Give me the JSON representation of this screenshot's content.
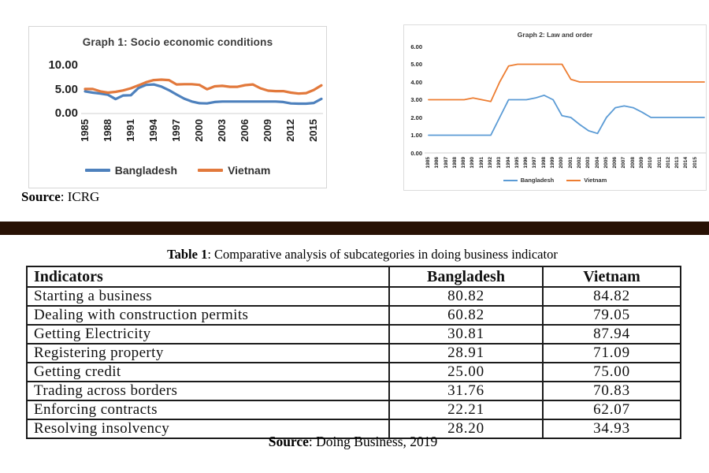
{
  "chart_data": [
    {
      "type": "line",
      "title": "Graph 1: Socio economic conditions",
      "x": [
        1985,
        1986,
        1987,
        1988,
        1989,
        1990,
        1991,
        1992,
        1993,
        1994,
        1995,
        1996,
        1997,
        1998,
        1999,
        2000,
        2001,
        2002,
        2003,
        2004,
        2005,
        2006,
        2007,
        2008,
        2009,
        2010,
        2011,
        2012,
        2013,
        2014,
        2015,
        2016
      ],
      "x_range": [
        1985,
        2016
      ],
      "series": [
        {
          "name": "Bangladesh",
          "color": "#4E81BD",
          "values": [
            4.6,
            4.35,
            4.15,
            3.9,
            3.0,
            3.75,
            3.8,
            5.3,
            5.95,
            6.05,
            5.6,
            4.85,
            3.95,
            3.1,
            2.5,
            2.15,
            2.1,
            2.4,
            2.5,
            2.5,
            2.5,
            2.5,
            2.5,
            2.5,
            2.5,
            2.5,
            2.4,
            2.1,
            2.05,
            2.05,
            2.2,
            3.05
          ]
        },
        {
          "name": "Vietnam",
          "color": "#E2793C",
          "values": [
            5.1,
            5.1,
            4.6,
            4.35,
            4.5,
            4.8,
            5.25,
            5.85,
            6.5,
            6.95,
            7.05,
            6.95,
            6.05,
            6.1,
            6.1,
            5.95,
            5.05,
            5.65,
            5.75,
            5.55,
            5.55,
            5.9,
            6.05,
            5.25,
            4.75,
            4.65,
            4.65,
            4.35,
            4.15,
            4.25,
            4.9,
            5.85
          ]
        }
      ],
      "ylim": [
        0,
        10
      ],
      "yticks": [
        0,
        5,
        10
      ],
      "ytick_labels": [
        "0.00",
        "5.00",
        "10.00"
      ],
      "xticks": [
        1985,
        1988,
        1991,
        1994,
        1997,
        2000,
        2003,
        2006,
        2009,
        2012,
        2015
      ],
      "xtick_labels": [
        "1985",
        "1988",
        "1991",
        "1994",
        "1997",
        "2000",
        "2003",
        "2006",
        "2009",
        "2012",
        "2015"
      ],
      "xlabel": "",
      "ylabel": "",
      "grid": false,
      "legend_position": "bottom"
    },
    {
      "type": "line",
      "title": "Graph 2: Law and order",
      "x": [
        1985,
        1986,
        1987,
        1988,
        1989,
        1990,
        1991,
        1992,
        1993,
        1994,
        1995,
        1996,
        1997,
        1998,
        1999,
        2000,
        2001,
        2002,
        2003,
        2004,
        2005,
        2006,
        2007,
        2008,
        2009,
        2010,
        2011,
        2012,
        2013,
        2014,
        2015,
        2016
      ],
      "x_range": [
        1985,
        2016
      ],
      "series": [
        {
          "name": "Bangladesh",
          "color": "#5B9BD5",
          "values": [
            1.0,
            1.0,
            1.0,
            1.0,
            1.0,
            1.0,
            1.0,
            1.0,
            2.0,
            3.0,
            3.0,
            3.0,
            3.1,
            3.25,
            3.0,
            2.1,
            2.0,
            1.6,
            1.25,
            1.1,
            2.0,
            2.55,
            2.65,
            2.55,
            2.3,
            2.0,
            2.0,
            2.0,
            2.0,
            2.0,
            2.0,
            2.0
          ]
        },
        {
          "name": "Vietnam",
          "color": "#ED7D31",
          "values": [
            3.0,
            3.0,
            3.0,
            3.0,
            3.0,
            3.1,
            3.0,
            2.9,
            4.0,
            4.9,
            5.0,
            5.0,
            5.0,
            5.0,
            5.0,
            5.0,
            4.15,
            4.0,
            4.0,
            4.0,
            4.0,
            4.0,
            4.0,
            4.0,
            4.0,
            4.0,
            4.0,
            4.0,
            4.0,
            4.0,
            4.0,
            4.0
          ]
        }
      ],
      "ylim": [
        0,
        6
      ],
      "yticks": [
        0,
        1,
        2,
        3,
        4,
        5,
        6
      ],
      "ytick_labels": [
        "0.00",
        "1.00",
        "2.00",
        "3.00",
        "4.00",
        "5.00",
        "6.00"
      ],
      "xticks": [
        1985,
        1986,
        1987,
        1988,
        1989,
        1990,
        1991,
        1992,
        1993,
        1994,
        1995,
        1996,
        1997,
        1998,
        1999,
        2000,
        2001,
        2002,
        2003,
        2004,
        2005,
        2006,
        2007,
        2008,
        2009,
        2010,
        2011,
        2012,
        2013,
        2014,
        2015
      ],
      "xtick_labels": [
        "1985",
        "1986",
        "1987",
        "1988",
        "1989",
        "1990",
        "1991",
        "1992",
        "1993",
        "1994",
        "1995",
        "1996",
        "1997",
        "1998",
        "1999",
        "2000",
        "2001",
        "2002",
        "2003",
        "2004",
        "2005",
        "2006",
        "2007",
        "2008",
        "2009",
        "2010",
        "2011",
        "2012",
        "2013",
        "2014",
        "2015"
      ],
      "xlabel": "",
      "ylabel": "",
      "grid": false,
      "legend_position": "bottom"
    }
  ],
  "sources": {
    "graph1": {
      "label": "Source",
      "text": ": ICRG"
    },
    "table": {
      "label": "Source",
      "text": ": Doing Business, 2019"
    }
  },
  "divider_color": "#281104",
  "table": {
    "caption_bold": "Table 1",
    "caption_rest": ": Comparative analysis of subcategories in doing business indicator",
    "columns": [
      "Indicators",
      "Bangladesh",
      "Vietnam"
    ],
    "rows": [
      [
        "Starting a business",
        "80.82",
        "84.82"
      ],
      [
        "Dealing with construction permits",
        "60.82",
        "79.05"
      ],
      [
        "Getting Electricity",
        "30.81",
        "87.94"
      ],
      [
        "Registering property",
        "28.91",
        "71.09"
      ],
      [
        "Getting credit",
        "25.00",
        "75.00"
      ],
      [
        "Trading across borders",
        "31.76",
        "70.83"
      ],
      [
        "Enforcing contracts",
        "22.21",
        "62.07"
      ],
      [
        "Resolving insolvency",
        "28.20",
        "34.93"
      ]
    ]
  }
}
